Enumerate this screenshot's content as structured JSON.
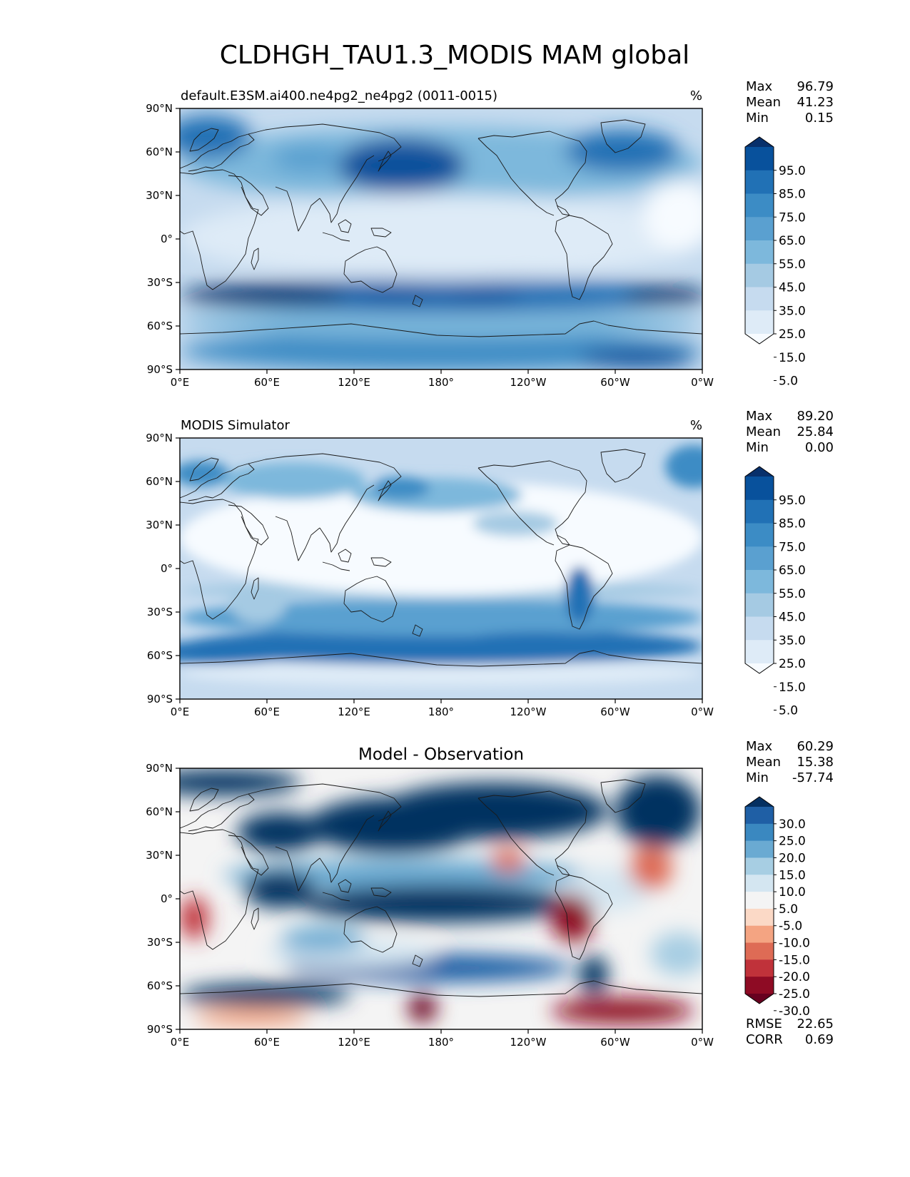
{
  "figure": {
    "title": "CLDHGH_TAU1.3_MODIS MAM global"
  },
  "axes": {
    "lat_ticks": [
      "90°N",
      "60°N",
      "30°N",
      "0°",
      "30°S",
      "60°S",
      "90°S"
    ],
    "lon_ticks": [
      "0°E",
      "60°E",
      "120°E",
      "180°",
      "120°W",
      "60°W",
      "0°W"
    ]
  },
  "panels": [
    {
      "id": "test",
      "left_title": "default.E3SM.ai400.ne4pg2_ne4pg2 (0011-0015)",
      "center_title": "",
      "units": "%",
      "stats": [
        {
          "label": "Max",
          "value": "96.79"
        },
        {
          "label": "Mean",
          "value": "41.23"
        },
        {
          "label": "Min",
          "value": "0.15"
        }
      ],
      "extra_stats": [],
      "colorbar": {
        "labels": [
          "95.0",
          "85.0",
          "75.0",
          "65.0",
          "55.0",
          "45.0",
          "35.0",
          "25.0",
          "15.0",
          "5.0"
        ],
        "colors": [
          "#08306b",
          "#08519c",
          "#2171b5",
          "#3c8cc5",
          "#5aa0d0",
          "#7db8dc",
          "#a5cae3",
          "#c6dbef",
          "#deebf7",
          "#f7fbff"
        ]
      }
    },
    {
      "id": "reference",
      "left_title": "MODIS Simulator",
      "center_title": "",
      "units": "%",
      "stats": [
        {
          "label": "Max",
          "value": "89.20"
        },
        {
          "label": "Mean",
          "value": "25.84"
        },
        {
          "label": "Min",
          "value": "0.00"
        }
      ],
      "extra_stats": [],
      "colorbar": {
        "labels": [
          "95.0",
          "85.0",
          "75.0",
          "65.0",
          "55.0",
          "45.0",
          "35.0",
          "25.0",
          "15.0",
          "5.0"
        ],
        "colors": [
          "#08306b",
          "#08519c",
          "#2171b5",
          "#3c8cc5",
          "#5aa0d0",
          "#7db8dc",
          "#a5cae3",
          "#c6dbef",
          "#deebf7",
          "#f7fbff"
        ]
      }
    },
    {
      "id": "difference",
      "left_title": "",
      "center_title": "Model - Observation",
      "units": "",
      "stats": [
        {
          "label": "Max",
          "value": "60.29"
        },
        {
          "label": "Mean",
          "value": "15.38"
        },
        {
          "label": "Min",
          "value": "-57.74"
        }
      ],
      "extra_stats": [
        {
          "label": "RMSE",
          "value": "22.65"
        },
        {
          "label": "CORR",
          "value": "0.69"
        }
      ],
      "colorbar": {
        "labels": [
          "30.0",
          "25.0",
          "20.0",
          "15.0",
          "10.0",
          "5.0",
          "-5.0",
          "-10.0",
          "-15.0",
          "-20.0",
          "-25.0",
          "-30.0"
        ],
        "colors": [
          "#053061",
          "#1f5fa5",
          "#3a88c0",
          "#6aaad2",
          "#a7cee3",
          "#d4e6f1",
          "#f4f4f4",
          "#fbd9c6",
          "#f4a482",
          "#de6b55",
          "#c0323a",
          "#8e0b24",
          "#67001f"
        ]
      }
    }
  ]
}
